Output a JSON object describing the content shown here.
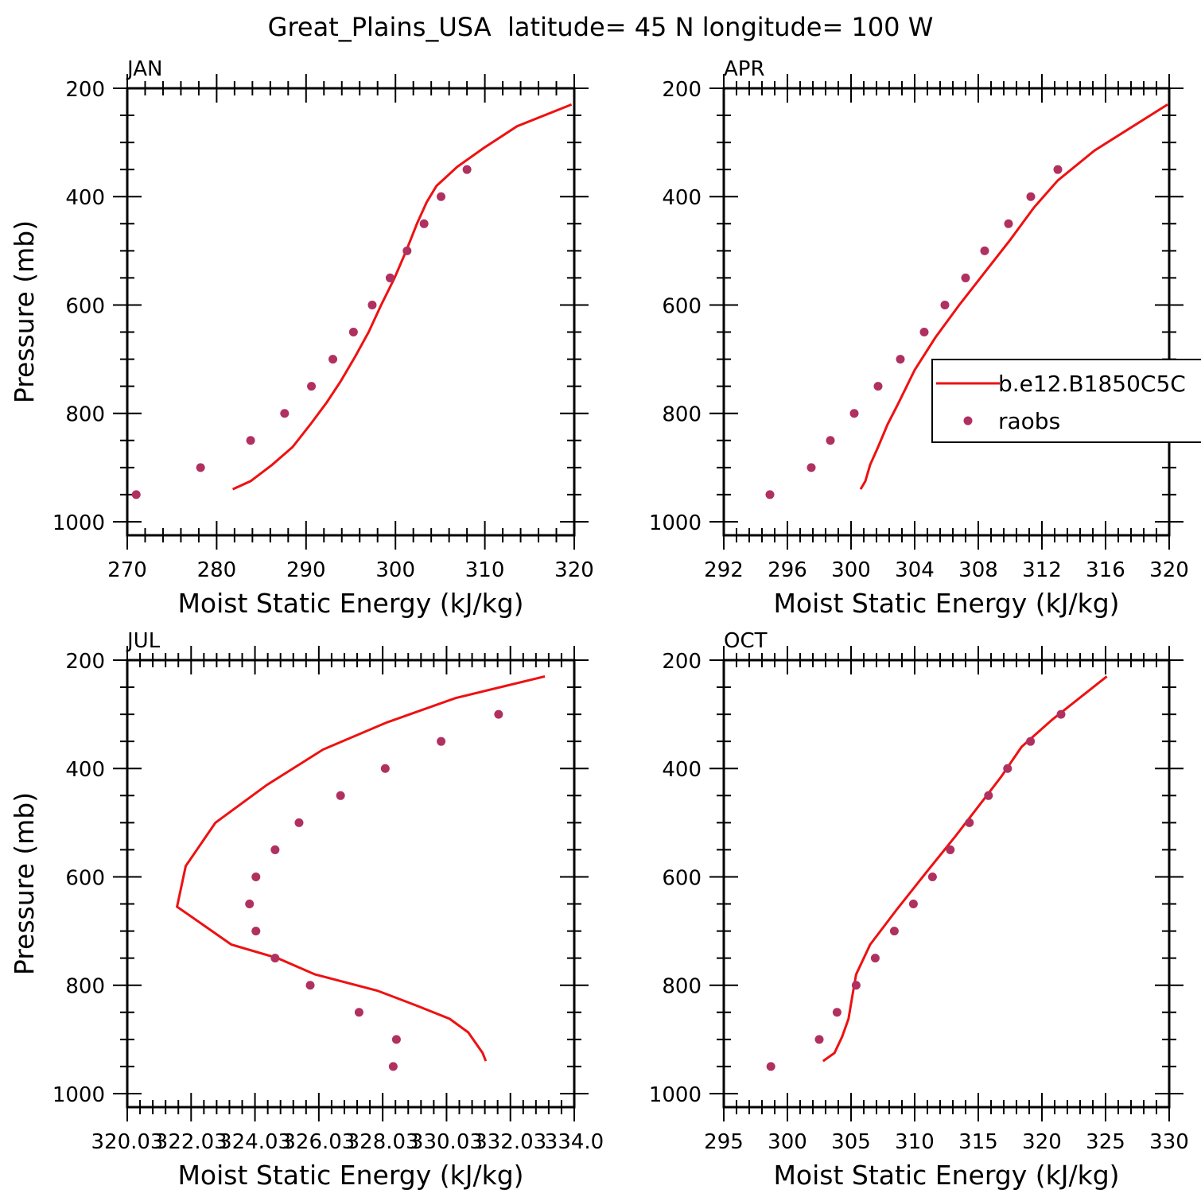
{
  "title": "Great_Plains_USA  latitude= 45 N longitude= 100 W",
  "colors": {
    "model": "#ee1111",
    "obs": "#b03060",
    "axis": "#000000"
  },
  "chart_data": [
    {
      "type": "line",
      "panel_label": "JAN",
      "xlabel": "Moist Static Energy (kJ/kg)",
      "ylabel": "Pressure (mb)",
      "xlim": [
        270,
        320
      ],
      "ylim": [
        1000,
        200
      ],
      "xticks": [
        "270",
        "280",
        "290",
        "300",
        "310",
        "320"
      ],
      "yticks": [
        "200",
        "400",
        "600",
        "800",
        "1000"
      ],
      "series": [
        {
          "name": "b.e12.B1850C5C",
          "kind": "line",
          "x": [
            281.8,
            283.8,
            286.2,
            288.5,
            290.5,
            292.3,
            293.9,
            295.5,
            297.0,
            298.4,
            299.9,
            301.2,
            302.4,
            303.5,
            304.6,
            305.6,
            306.9,
            309.9,
            313.6,
            319.7
          ],
          "y": [
            940,
            925,
            895,
            862,
            820,
            780,
            740,
            695,
            650,
            600,
            550,
            500,
            450,
            410,
            380,
            365,
            345,
            310,
            270,
            230
          ]
        },
        {
          "name": "raobs",
          "kind": "scatter",
          "x": [
            271.0,
            278.2,
            283.8,
            287.6,
            290.6,
            293.0,
            295.3,
            297.4,
            299.4,
            301.3,
            303.2,
            305.1,
            308.0
          ],
          "y": [
            950,
            900,
            850,
            800,
            750,
            700,
            650,
            600,
            550,
            500,
            450,
            400,
            350
          ]
        }
      ]
    },
    {
      "type": "line",
      "panel_label": "APR",
      "xlabel": "Moist Static Energy (kJ/kg)",
      "ylabel": "",
      "xlim": [
        292,
        320
      ],
      "ylim": [
        1000,
        200
      ],
      "xticks": [
        "292",
        "296",
        "300",
        "304",
        "308",
        "312",
        "316",
        "320"
      ],
      "yticks": [
        "200",
        "400",
        "600",
        "800",
        "1000"
      ],
      "legend": {
        "position": "right",
        "entries": [
          "b.e12.B1850C5C",
          "raobs"
        ]
      },
      "series": [
        {
          "name": "b.e12.B1850C5C",
          "kind": "line",
          "x": [
            300.6,
            300.9,
            301.2,
            301.7,
            302.3,
            303.0,
            304.0,
            305.3,
            306.8,
            308.4,
            310.0,
            311.5,
            313.0,
            315.3,
            319.9
          ],
          "y": [
            940,
            925,
            895,
            862,
            820,
            780,
            720,
            660,
            600,
            540,
            480,
            420,
            370,
            315,
            230
          ]
        },
        {
          "name": "raobs",
          "kind": "scatter",
          "x": [
            294.9,
            297.5,
            298.7,
            300.2,
            301.7,
            303.1,
            304.6,
            305.9,
            307.2,
            308.4,
            309.9,
            311.3,
            313.0
          ],
          "y": [
            950,
            900,
            850,
            800,
            750,
            700,
            650,
            600,
            550,
            500,
            450,
            400,
            350
          ]
        }
      ]
    },
    {
      "type": "line",
      "panel_label": "JUL",
      "xlabel": "Moist Static Energy (kJ/kg)",
      "ylabel": "Pressure (mb)",
      "xlim": [
        320.03,
        334.03
      ],
      "ylim": [
        1000,
        200
      ],
      "xticks": [
        "320.03",
        "322.03",
        "324.03",
        "326.03",
        "328.03",
        "330.03",
        "332.03",
        "334.0"
      ],
      "yticks": [
        "200",
        "400",
        "600",
        "800",
        "1000"
      ],
      "series": [
        {
          "name": "b.e12.B1850C5C",
          "kind": "line",
          "x": [
            331.26,
            331.16,
            330.71,
            330.13,
            329.11,
            327.86,
            325.91,
            324.74,
            323.29,
            321.59,
            321.86,
            322.79,
            324.41,
            326.16,
            328.16,
            330.31,
            333.11
          ],
          "y": [
            940,
            925,
            887,
            862,
            838,
            810,
            780,
            750,
            725,
            655,
            580,
            500,
            430,
            365,
            315,
            270,
            230
          ]
        },
        {
          "name": "raobs",
          "kind": "scatter",
          "x": [
            328.36,
            328.46,
            327.29,
            325.76,
            324.66,
            324.06,
            323.86,
            324.06,
            324.66,
            325.41,
            326.71,
            328.11,
            329.86,
            331.66
          ],
          "y": [
            950,
            900,
            850,
            800,
            750,
            700,
            650,
            600,
            550,
            500,
            450,
            400,
            350,
            300
          ]
        }
      ]
    },
    {
      "type": "line",
      "panel_label": "OCT",
      "xlabel": "Moist Static Energy (kJ/kg)",
      "ylabel": "",
      "xlim": [
        295,
        330
      ],
      "ylim": [
        1000,
        200
      ],
      "xticks": [
        "295",
        "300",
        "305",
        "310",
        "315",
        "320",
        "325",
        "330"
      ],
      "yticks": [
        "200",
        "400",
        "600",
        "800",
        "1000"
      ],
      "series": [
        {
          "name": "b.e12.B1850C5C",
          "kind": "line",
          "x": [
            302.8,
            303.7,
            304.3,
            304.8,
            305.1,
            305.4,
            306.5,
            308.6,
            310.8,
            313.2,
            315.5,
            316.8,
            318.4,
            320.8,
            325.1
          ],
          "y": [
            940,
            925,
            895,
            862,
            820,
            780,
            725,
            660,
            595,
            525,
            455,
            415,
            360,
            310,
            230
          ]
        },
        {
          "name": "raobs",
          "kind": "scatter",
          "x": [
            298.7,
            302.5,
            303.9,
            305.4,
            306.9,
            308.4,
            309.9,
            311.4,
            312.8,
            314.3,
            315.8,
            317.3,
            319.1,
            321.5
          ],
          "y": [
            950,
            900,
            850,
            800,
            750,
            700,
            650,
            600,
            550,
            500,
            450,
            400,
            350,
            300
          ]
        }
      ]
    }
  ]
}
